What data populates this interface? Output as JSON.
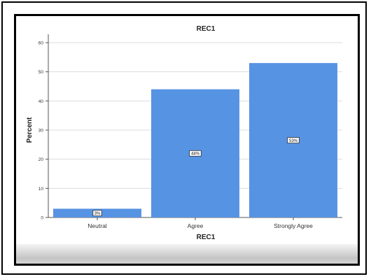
{
  "chart_data": {
    "type": "bar",
    "title": "REC1",
    "xlabel": "REC1",
    "ylabel": "Percent",
    "categories": [
      "Neutral",
      "Agree",
      "Strongly Agree"
    ],
    "values": [
      3,
      44,
      53
    ],
    "data_labels": [
      "3%",
      "44%",
      "53%"
    ],
    "ylim": [
      0,
      60
    ],
    "yticks": [
      0,
      10,
      20,
      30,
      40,
      50,
      60
    ],
    "grid": true,
    "bar_color": "#5793e3"
  }
}
